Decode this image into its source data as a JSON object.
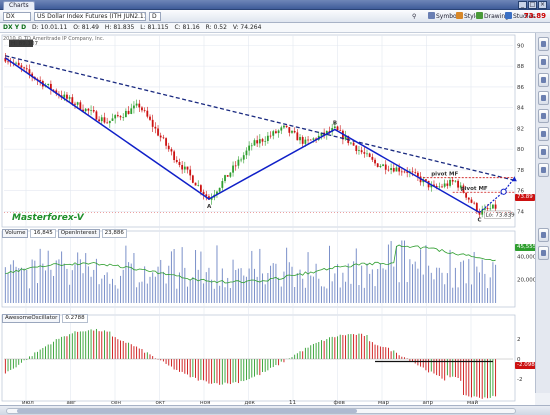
{
  "window": {
    "tab_title": "Charts",
    "controls": [
      "_",
      "□",
      "×"
    ]
  },
  "toolbar": {
    "symbol": "DX",
    "description": "US Dollar Index Futures (ITH JUN2.11)",
    "interval": "D",
    "buttons": [
      {
        "label": "Style",
        "icon": "style-icon"
      },
      {
        "label": "Drawings",
        "icon": "drawings-icon"
      },
      {
        "label": "Studies",
        "icon": "studies-icon"
      }
    ],
    "symbols_label": "Symbols",
    "last_price": "73.89"
  },
  "infobar": {
    "symbol": "DX Y D",
    "date": "D: 10.01.11",
    "open": "O: 81.49",
    "high": "H: 81.835",
    "low": "L: 81.115",
    "close": "C: 81.16",
    "change": "R: 0.52",
    "extra": "V: 74.264"
  },
  "copyright": "2010 © TD Ameritrade IP Company, Inc.",
  "watermark": "Masterforex-V",
  "colors": {
    "up": "#2e9e2e",
    "down": "#cc1111",
    "wave": "#1020c8",
    "trend": "#1a2a80",
    "pivot": "#cc1111",
    "volume": "#7b90c9",
    "volume_avg": "#2e9e2e"
  },
  "chart_data": [
    {
      "type": "candlestick",
      "title": "",
      "x_ticks": [
        "июл",
        "авг",
        "сен",
        "окт",
        "ноя",
        "дек",
        "11",
        "фев",
        "мар",
        "апр",
        "май"
      ],
      "y_ticks": [
        90,
        88,
        86,
        84,
        82,
        80,
        78,
        76,
        74
      ],
      "ylim": [
        72.5,
        91
      ],
      "high_label": "H: 89.107",
      "low_label": "Lo: 73.839",
      "last_price": 73.89,
      "points": [
        {
          "label": "A",
          "x": 76,
          "y": 75.2
        },
        {
          "label": "B",
          "x": 123,
          "y": 81.9
        },
        {
          "label": "C",
          "x": 177,
          "y": 73.9
        }
      ],
      "wave_start": {
        "x": 0,
        "y": 88.8
      },
      "trendline": {
        "x1": 0,
        "y1": 89.0,
        "x2": 190,
        "y2": 77.0
      },
      "pivots": [
        {
          "label": "pivot MF",
          "y": 77.25,
          "x1": 156,
          "x2": 190
        },
        {
          "label": "pivot MF",
          "y": 75.85,
          "x1": 167,
          "x2": 190
        }
      ],
      "projection": [
        {
          "x": 177,
          "y": 73.9
        },
        {
          "x": 186,
          "y": 75.9
        },
        {
          "x": 190,
          "y": 77.2
        }
      ]
    },
    {
      "type": "bar",
      "title": "Volume",
      "header": [
        "Volume",
        "16,845",
        "OpenInterest",
        "23,886"
      ],
      "y_ticks": [
        "40,000",
        "20,000"
      ],
      "y_label_tag": "45,555",
      "ylim": [
        0,
        55000
      ]
    },
    {
      "type": "bar",
      "title": "AwesomeOscillator",
      "header": [
        "AwesomeOscillator",
        "0.2788"
      ],
      "y_ticks": [
        "2",
        "0",
        "-2"
      ],
      "y_label_tag": "-2.098",
      "ylim": [
        -3.6,
        3.6
      ]
    }
  ]
}
